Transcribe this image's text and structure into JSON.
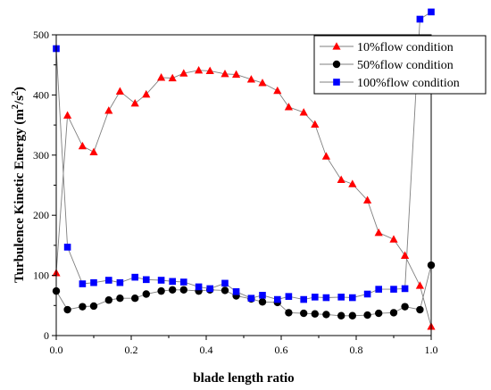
{
  "chart_data": {
    "type": "line",
    "xlabel": "blade length ratio",
    "ylabel": "Turbulence Kinetic Energy",
    "ylabel_unit_base": "(m",
    "ylabel_unit_sup1": "2",
    "ylabel_unit_mid": "/s",
    "ylabel_unit_sup2": "2",
    "ylabel_unit_end": ")",
    "xlim": [
      0,
      1.0
    ],
    "ylim": [
      0,
      500
    ],
    "xticks": [
      "0.0",
      "0.2",
      "0.4",
      "0.6",
      "0.8",
      "1.0"
    ],
    "yticks": [
      "0",
      "100",
      "200",
      "300",
      "400",
      "500"
    ],
    "xtick_values": [
      0,
      0.2,
      0.4,
      0.6,
      0.8,
      1.0
    ],
    "ytick_values": [
      0,
      100,
      200,
      300,
      400,
      500
    ],
    "legend_position": "top-right",
    "grid": false,
    "series": [
      {
        "name": "10%flow condition",
        "marker": "triangle",
        "color": "#ff0000",
        "x": [
          0.0,
          0.03,
          0.07,
          0.1,
          0.14,
          0.17,
          0.21,
          0.24,
          0.28,
          0.31,
          0.34,
          0.38,
          0.41,
          0.45,
          0.48,
          0.52,
          0.55,
          0.59,
          0.62,
          0.66,
          0.69,
          0.72,
          0.76,
          0.79,
          0.83,
          0.86,
          0.9,
          0.93,
          0.97,
          1.0
        ],
        "values": [
          104,
          366,
          315,
          305,
          374,
          406,
          386,
          401,
          429,
          428,
          436,
          441,
          440,
          435,
          434,
          426,
          420,
          407,
          380,
          371,
          351,
          298,
          259,
          252,
          225,
          171,
          160,
          133,
          83,
          15
        ]
      },
      {
        "name": "50%flow condition",
        "marker": "circle",
        "color": "#000000",
        "x": [
          0.0,
          0.03,
          0.07,
          0.1,
          0.14,
          0.17,
          0.21,
          0.24,
          0.28,
          0.31,
          0.34,
          0.38,
          0.41,
          0.45,
          0.48,
          0.52,
          0.55,
          0.59,
          0.62,
          0.66,
          0.69,
          0.72,
          0.76,
          0.79,
          0.83,
          0.86,
          0.9,
          0.93,
          0.97,
          1.0
        ],
        "values": [
          74,
          43,
          48,
          49,
          59,
          62,
          62,
          69,
          74,
          76,
          76,
          74,
          76,
          75,
          66,
          61,
          56,
          55,
          38,
          37,
          36,
          35,
          33,
          33,
          34,
          37,
          38,
          48,
          43,
          117
        ]
      },
      {
        "name": "100%flow condition",
        "marker": "square",
        "color": "#0000ff",
        "x": [
          0.0,
          0.03,
          0.07,
          0.1,
          0.14,
          0.17,
          0.21,
          0.24,
          0.28,
          0.31,
          0.34,
          0.38,
          0.41,
          0.45,
          0.48,
          0.52,
          0.55,
          0.59,
          0.62,
          0.66,
          0.69,
          0.72,
          0.76,
          0.79,
          0.83,
          0.86,
          0.9,
          0.93,
          0.97,
          1.0
        ],
        "values": [
          477,
          147,
          86,
          88,
          92,
          88,
          97,
          93,
          92,
          90,
          89,
          81,
          78,
          87,
          73,
          62,
          67,
          60,
          65,
          60,
          64,
          63,
          64,
          63,
          69,
          77,
          77,
          78,
          526,
          538
        ]
      }
    ]
  }
}
